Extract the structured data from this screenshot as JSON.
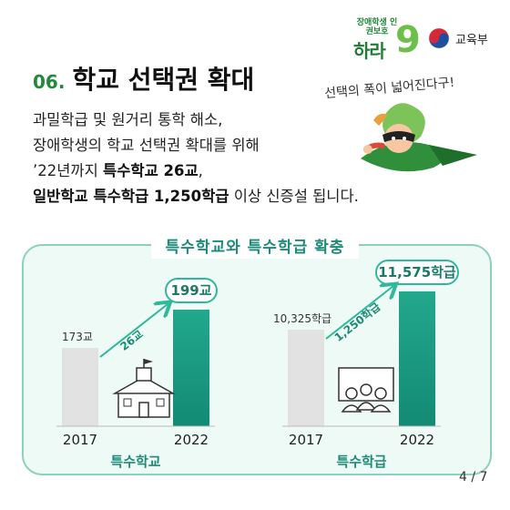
{
  "logo": {
    "slogan_small": "장애학생 인권보호",
    "slogan_big": "하라",
    "slogan_num": "9",
    "ministry": "교육부"
  },
  "heading": {
    "number": "06.",
    "title": "학교 선택권 확대"
  },
  "speech": "선택의 폭이 넓어진다구!",
  "body": {
    "line1": "과밀학급 및 원거리 통학 해소,",
    "line2": "장애학생의 학교 선택권 확대를 위해",
    "line3_pre": "’22년까지 ",
    "line3_bold": "특수학교 26교",
    "line3_post": ",",
    "line4_bold": "일반학교 특수학급 1,250학급",
    "line4_post": " 이상 신증설 됩니다."
  },
  "panel_title": "특수학교와 특수학급 확충",
  "page": "4 / 7",
  "colors": {
    "green_bar": "#1a9a86",
    "grey_bar": "#e2e2e2",
    "accent": "#1f8a3a"
  },
  "chart_data": [
    {
      "type": "bar",
      "title": "특수학교",
      "categories": [
        "2017",
        "2022"
      ],
      "values": [
        173,
        199
      ],
      "value_labels": [
        "173교",
        "199교"
      ],
      "increase_label": "26교",
      "icon": "school-building-icon"
    },
    {
      "type": "bar",
      "title": "특수학급",
      "categories": [
        "2017",
        "2022"
      ],
      "values": [
        10325,
        11575
      ],
      "value_labels": [
        "10,325학급",
        "11,575학급"
      ],
      "increase_label": "1,250학급",
      "icon": "classroom-students-icon"
    }
  ]
}
